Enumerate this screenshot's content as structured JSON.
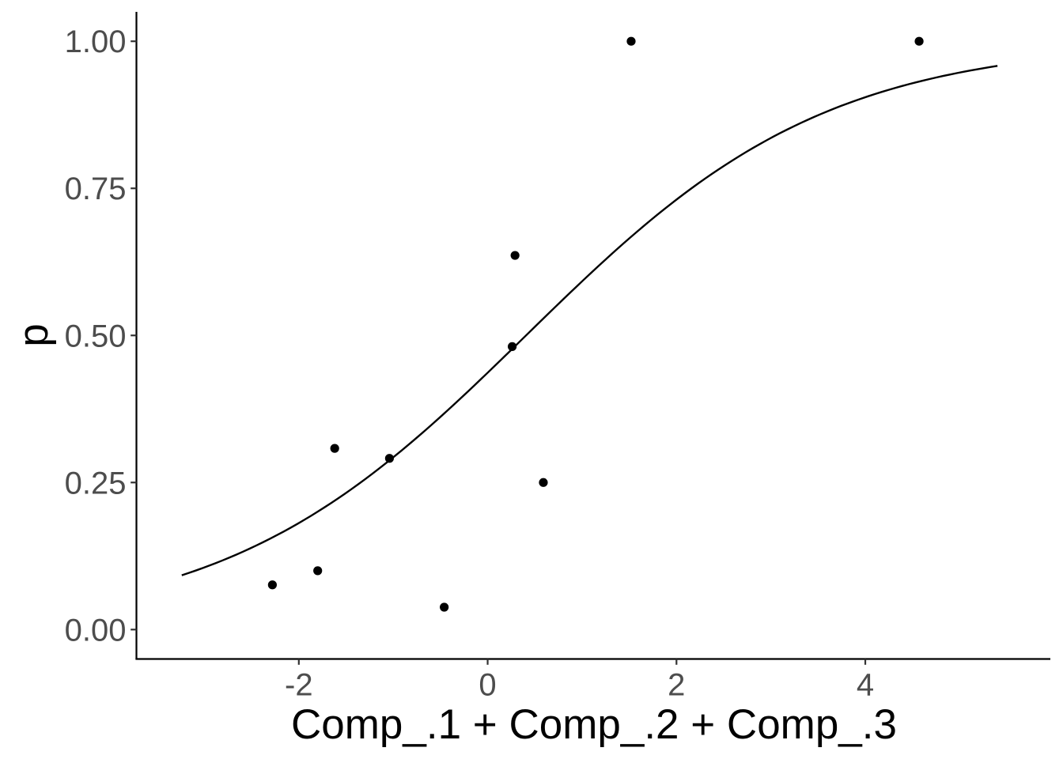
{
  "chart_data": {
    "type": "scatter",
    "xlabel": "Comp_.1 + Comp_.2 + Comp_.3",
    "ylabel": "p",
    "xlim": [
      -3.72,
      5.96
    ],
    "ylim": [
      -0.05,
      1.05
    ],
    "x_ticks": [
      -2,
      0,
      2,
      4
    ],
    "x_tick_labels": [
      "-2",
      "0",
      "2",
      "4"
    ],
    "y_ticks": [
      0,
      0.25,
      0.5,
      0.75,
      1.0
    ],
    "y_tick_labels": [
      "0.00",
      "0.25",
      "0.50",
      "0.75",
      "1.00"
    ],
    "grid": false,
    "legend": "none",
    "points": [
      {
        "x": -2.28,
        "y": 0.076
      },
      {
        "x": -1.8,
        "y": 0.1
      },
      {
        "x": -1.62,
        "y": 0.308
      },
      {
        "x": -1.04,
        "y": 0.291
      },
      {
        "x": -0.46,
        "y": 0.038
      },
      {
        "x": 0.26,
        "y": 0.481
      },
      {
        "x": 0.29,
        "y": 0.636
      },
      {
        "x": 0.59,
        "y": 0.25
      },
      {
        "x": 1.52,
        "y": 1.0
      },
      {
        "x": 4.57,
        "y": 1.0
      }
    ],
    "fit_curve": {
      "type": "logistic",
      "x_range": [
        -3.24,
        5.4
      ],
      "intercept": -0.255,
      "slope": 0.627
    },
    "colors": {
      "points": "#000000",
      "line": "#000000",
      "tick_labels": "#4d4d4d",
      "axis": "#000000"
    }
  }
}
